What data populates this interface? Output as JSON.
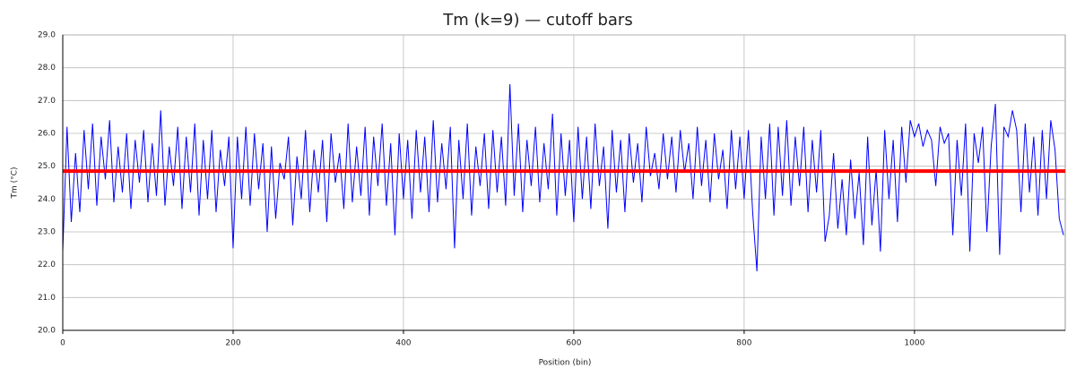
{
  "chart_data": {
    "type": "line",
    "title": "Tm (k=9) — cutoff bars",
    "xlabel": "Position (bin)",
    "ylabel": "Tm (°C)",
    "x": [
      0,
      5,
      10,
      15,
      20,
      25,
      30,
      35,
      40,
      45,
      50,
      55,
      60,
      65,
      70,
      75,
      80,
      85,
      90,
      95,
      100,
      105,
      110,
      115,
      120,
      125,
      130,
      135,
      140,
      145,
      150,
      155,
      160,
      165,
      170,
      175,
      180,
      185,
      190,
      195,
      200,
      205,
      210,
      215,
      220,
      225,
      230,
      235,
      240,
      245,
      250,
      255,
      260,
      265,
      270,
      275,
      280,
      285,
      290,
      295,
      300,
      305,
      310,
      315,
      320,
      325,
      330,
      335,
      340,
      345,
      350,
      355,
      360,
      365,
      370,
      375,
      380,
      385,
      390,
      395,
      400,
      405,
      410,
      415,
      420,
      425,
      430,
      435,
      440,
      445,
      450,
      455,
      460,
      465,
      470,
      475,
      480,
      485,
      490,
      495,
      500,
      505,
      510,
      515,
      520,
      525,
      530,
      535,
      540,
      545,
      550,
      555,
      560,
      565,
      570,
      575,
      580,
      585,
      590,
      595,
      600,
      605,
      610,
      615,
      620,
      625,
      630,
      635,
      640,
      645,
      650,
      655,
      660,
      665,
      670,
      675,
      680,
      685,
      690,
      695,
      700,
      705,
      710,
      715,
      720,
      725,
      730,
      735,
      740,
      745,
      750,
      755,
      760,
      765,
      770,
      775,
      780,
      785,
      790,
      795,
      800,
      805,
      810,
      815,
      820,
      825,
      830,
      835,
      840,
      845,
      850,
      855,
      860,
      865,
      870,
      875,
      880,
      885,
      890,
      895,
      900,
      905,
      910,
      915,
      920,
      925,
      930,
      935,
      940,
      945,
      950,
      955,
      960,
      965,
      970,
      975,
      980,
      985,
      990,
      995,
      1000,
      1005,
      1010,
      1015,
      1020,
      1025,
      1030,
      1035,
      1040,
      1045,
      1050,
      1055,
      1060,
      1065,
      1070,
      1075,
      1080,
      1085,
      1090,
      1095,
      1100,
      1105,
      1110,
      1115,
      1120,
      1125,
      1130,
      1135,
      1140,
      1145,
      1150,
      1155,
      1160,
      1165,
      1170,
      1175
    ],
    "series": [
      {
        "color": "#0000ff",
        "values": [
          22.4,
          26.2,
          23.3,
          25.4,
          23.6,
          26.1,
          24.3,
          26.3,
          23.8,
          25.9,
          24.6,
          26.4,
          23.9,
          25.6,
          24.2,
          26.0,
          23.7,
          25.8,
          24.5,
          26.1,
          23.9,
          25.7,
          24.1,
          26.7,
          23.8,
          25.6,
          24.4,
          26.2,
          23.7,
          25.9,
          24.2,
          26.3,
          23.5,
          25.8,
          24.0,
          26.1,
          23.6,
          25.5,
          24.4,
          25.9,
          22.5,
          25.9,
          24.0,
          26.2,
          23.8,
          26.0,
          24.3,
          25.7,
          23.0,
          25.6,
          23.4,
          25.1,
          24.6,
          25.9,
          23.2,
          25.3,
          24.0,
          26.1,
          23.6,
          25.5,
          24.2,
          25.8,
          23.3,
          26.0,
          24.5,
          25.4,
          23.7,
          26.3,
          23.9,
          25.6,
          24.1,
          26.2,
          23.5,
          25.9,
          24.4,
          26.3,
          23.8,
          25.7,
          22.9,
          26.0,
          24.0,
          25.8,
          23.4,
          26.1,
          24.2,
          25.9,
          23.6,
          26.4,
          23.9,
          25.7,
          24.3,
          26.2,
          22.5,
          25.8,
          24.0,
          26.3,
          23.5,
          25.6,
          24.4,
          26.0,
          23.7,
          26.1,
          24.2,
          25.9,
          23.8,
          27.5,
          24.1,
          26.3,
          23.6,
          25.8,
          24.4,
          26.2,
          23.9,
          25.7,
          24.3,
          26.6,
          23.5,
          26.0,
          24.1,
          25.8,
          23.3,
          26.2,
          24.0,
          25.9,
          23.7,
          26.3,
          24.4,
          25.6,
          23.1,
          26.1,
          24.2,
          25.8,
          23.6,
          26.0,
          24.5,
          25.7,
          23.9,
          26.2,
          24.7,
          25.4,
          24.3,
          26.0,
          24.6,
          25.9,
          24.2,
          26.1,
          24.8,
          25.7,
          24.0,
          26.2,
          24.4,
          25.8,
          23.9,
          26.0,
          24.6,
          25.5,
          23.7,
          26.1,
          24.3,
          25.9,
          24.0,
          26.1,
          23.6,
          21.8,
          25.9,
          24.0,
          26.3,
          23.5,
          26.2,
          24.1,
          26.4,
          23.8,
          25.9,
          24.4,
          26.2,
          23.6,
          25.8,
          24.2,
          26.1,
          22.7,
          23.5,
          25.4,
          23.1,
          24.6,
          22.9,
          25.2,
          23.4,
          24.8,
          22.6,
          25.9,
          23.2,
          24.9,
          22.4,
          26.1,
          24.0,
          25.8,
          23.3,
          26.2,
          24.5,
          26.4,
          25.9,
          26.3,
          25.6,
          26.1,
          25.8,
          24.4,
          26.2,
          25.7,
          26.0,
          22.9,
          25.8,
          24.1,
          26.3,
          22.4,
          26.0,
          25.1,
          26.2,
          23.0,
          25.6,
          26.9,
          22.3,
          26.2,
          25.9,
          26.7,
          26.1,
          23.6,
          26.3,
          24.2,
          25.9,
          23.5,
          26.1,
          24.0,
          26.4,
          25.5,
          23.4,
          22.9
        ]
      }
    ],
    "hline": {
      "value": 24.85,
      "color": "#ff0000"
    },
    "xlim": [
      0,
      1177
    ],
    "xticks": [
      0,
      200,
      400,
      600,
      800,
      1000
    ],
    "ylim": [
      20,
      29
    ],
    "yticks": [
      {
        "value": 20,
        "label": "20.0"
      },
      {
        "value": 21,
        "label": "21.0"
      },
      {
        "value": 22,
        "label": "22.0"
      },
      {
        "value": 23,
        "label": "23.0"
      },
      {
        "value": 24,
        "label": "24.0"
      },
      {
        "value": 25,
        "label": "25.0"
      },
      {
        "value": 26,
        "label": "26.0"
      },
      {
        "value": 27,
        "label": "27.0"
      },
      {
        "value": 28,
        "label": "28.0"
      },
      {
        "value": 29,
        "label": "29.0"
      }
    ],
    "grid": true
  }
}
